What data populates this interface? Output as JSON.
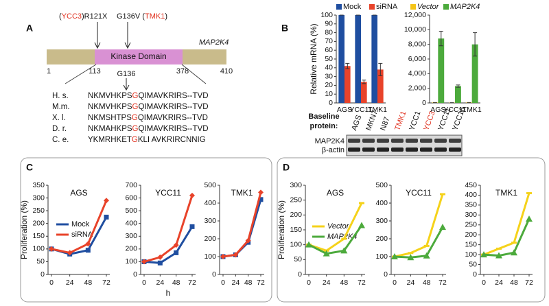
{
  "panel_labels": [
    "A",
    "B",
    "C",
    "D"
  ],
  "diagram": {
    "mutation_left": [
      "(",
      "YCC3",
      ")R121X"
    ],
    "mutation_right": [
      "G136V (",
      "TMK1",
      ")"
    ],
    "gene": "MAP2K4",
    "domain": "Kinase Domain",
    "positions": [
      "1",
      "113",
      "378",
      "410"
    ],
    "site": "G136",
    "alignment": [
      {
        "species": "H. s.",
        "before": "NKMVHKPS",
        "residue": "G",
        "after": "QIMAVKRIRS--TVD"
      },
      {
        "species": "M.m.",
        "before": "NKMVHKPS",
        "residue": "G",
        "after": "QIMAVKRIRS--TVD"
      },
      {
        "species": "X. l.",
        "before": "NKMSHTPS",
        "residue": "G",
        "after": "QIMAVKRIRS--TVD"
      },
      {
        "species": "D. r.",
        "before": "NKMAHKPS",
        "residue": "G",
        "after": "QIMAVKRIRS--TVD"
      },
      {
        "species": "C. e.",
        "before": "YKMRHKET",
        "residue": "G",
        "after": "KLI AVKRIRCNNIG"
      }
    ]
  },
  "blot": {
    "title": [
      "Baseline",
      "protein:"
    ],
    "lanes": [
      "AGS",
      "MKN7",
      "N87",
      "TMK1",
      "YCC1",
      "YCC3",
      "YCC11",
      "YCC16"
    ],
    "highlighted_lanes": [
      "TMK1",
      "YCC3"
    ],
    "rows": [
      "MAP2K4",
      "β-actin"
    ]
  },
  "chart_data": [
    {
      "type": "bar",
      "ylabel": "Relative mRNA (%)",
      "categories": [
        "AGS",
        "YCC11",
        "TMK1"
      ],
      "series": [
        {
          "name": "Mock",
          "color": "#1f4ea0",
          "values": [
            100,
            100,
            100
          ],
          "errors": [
            0,
            0,
            0
          ]
        },
        {
          "name": "siRNA",
          "color": "#e8432a",
          "values": [
            42,
            24,
            38
          ],
          "errors": [
            3,
            2,
            7
          ]
        }
      ],
      "ylim": [
        0,
        100
      ],
      "yticks": [
        0,
        10,
        20,
        30,
        40,
        50,
        60,
        70,
        80,
        90,
        100
      ]
    },
    {
      "type": "bar",
      "categories": [
        "AGS",
        "YCC11",
        "TMK1"
      ],
      "series": [
        {
          "name": "Vector",
          "color": "#f5c518",
          "values": [
            60,
            40,
            60
          ],
          "errors": [
            0,
            0,
            0
          ]
        },
        {
          "name": "MAP2K4",
          "color": "#4caa3c",
          "values": [
            8800,
            2300,
            8000
          ],
          "errors": [
            1000,
            150,
            1600
          ]
        }
      ],
      "ylim": [
        0,
        12000
      ],
      "yticks": [
        0,
        {
          "value": 2000,
          "label": "2,000"
        },
        {
          "value": 4000,
          "label": "4,000"
        },
        {
          "value": 6000,
          "label": "6,000"
        },
        {
          "value": 8000,
          "label": "8,000"
        },
        {
          "value": 10000,
          "label": "10,000"
        },
        {
          "value": 12000,
          "label": "12,000"
        }
      ]
    },
    {
      "type": "line",
      "title": "AGS",
      "ylabel": "Proliferation (%)",
      "x": [
        0,
        24,
        48,
        72
      ],
      "xlim": [
        0,
        72
      ],
      "xticks": [
        0,
        24,
        48,
        72
      ],
      "series": [
        {
          "name": "Mock",
          "color": "#1f4ea0",
          "marker": "square",
          "values": [
            100,
            80,
            95,
            225
          ]
        },
        {
          "name": "siRNA",
          "color": "#e8432a",
          "marker": "diamond",
          "values": [
            100,
            85,
            120,
            290
          ]
        }
      ],
      "ylim": [
        0,
        350
      ],
      "yticks": [
        0,
        50,
        100,
        150,
        200,
        250,
        300,
        350
      ]
    },
    {
      "type": "line",
      "title": "YCC11",
      "xlabel": "h",
      "x": [
        0,
        24,
        48,
        72
      ],
      "xlim": [
        0,
        72
      ],
      "xticks": [
        0,
        24,
        48,
        72
      ],
      "series": [
        {
          "name": "Mock",
          "color": "#1f4ea0",
          "marker": "square",
          "values": [
            100,
            90,
            170,
            375
          ]
        },
        {
          "name": "siRNA",
          "color": "#e8432a",
          "marker": "diamond",
          "values": [
            100,
            135,
            230,
            620
          ]
        }
      ],
      "ylim": [
        0,
        700
      ],
      "yticks": [
        0,
        100,
        200,
        300,
        400,
        500,
        600,
        700
      ]
    },
    {
      "type": "line",
      "title": "TMK1",
      "x": [
        0,
        24,
        48,
        72
      ],
      "xlim": [
        0,
        72
      ],
      "xticks": [
        0,
        24,
        48,
        72
      ],
      "series": [
        {
          "name": "Mock",
          "color": "#1f4ea0",
          "marker": "square",
          "values": [
            100,
            110,
            180,
            420
          ]
        },
        {
          "name": "siRNA",
          "color": "#e8432a",
          "marker": "diamond",
          "values": [
            100,
            110,
            190,
            460
          ]
        }
      ],
      "ylim": [
        0,
        500
      ],
      "yticks": [
        0,
        100,
        200,
        300,
        400,
        500
      ]
    },
    {
      "type": "line",
      "title": "AGS",
      "ylabel": "Proliferation (%)",
      "x": [
        0,
        24,
        48,
        72
      ],
      "xlim": [
        0,
        72
      ],
      "xticks": [
        0,
        24,
        48,
        72
      ],
      "series": [
        {
          "name": "Vector",
          "color": "#f5d21a",
          "marker": "dash",
          "values": [
            100,
            80,
            120,
            240
          ]
        },
        {
          "name": "MAP2K4",
          "color": "#4caa3c",
          "marker": "triangle",
          "values": [
            100,
            70,
            80,
            165
          ]
        }
      ],
      "ylim": [
        0,
        300
      ],
      "yticks": [
        0,
        50,
        100,
        150,
        200,
        250,
        300
      ]
    },
    {
      "type": "line",
      "title": "YCC11",
      "x": [
        0,
        24,
        48,
        72
      ],
      "xlim": [
        0,
        72
      ],
      "xticks": [
        0,
        24,
        48,
        72
      ],
      "series": [
        {
          "name": "Vector",
          "color": "#f5d21a",
          "marker": "dash",
          "values": [
            100,
            120,
            160,
            450
          ]
        },
        {
          "name": "MAP2K4",
          "color": "#4caa3c",
          "marker": "triangle",
          "values": [
            100,
            95,
            105,
            265
          ]
        }
      ],
      "ylim": [
        0,
        500
      ],
      "yticks": [
        0,
        100,
        200,
        300,
        400,
        500
      ]
    },
    {
      "type": "line",
      "title": "TMK1",
      "x": [
        0,
        24,
        48,
        72
      ],
      "xlim": [
        0,
        72
      ],
      "xticks": [
        0,
        24,
        48,
        72
      ],
      "series": [
        {
          "name": "Vector",
          "color": "#f5d21a",
          "marker": "dash",
          "values": [
            100,
            130,
            160,
            410
          ]
        },
        {
          "name": "MAP2K4",
          "color": "#4caa3c",
          "marker": "triangle",
          "values": [
            100,
            95,
            110,
            280
          ]
        }
      ],
      "ylim": [
        0,
        450
      ],
      "yticks": [
        0,
        50,
        100,
        150,
        200,
        250,
        300,
        350,
        400,
        450
      ]
    }
  ]
}
